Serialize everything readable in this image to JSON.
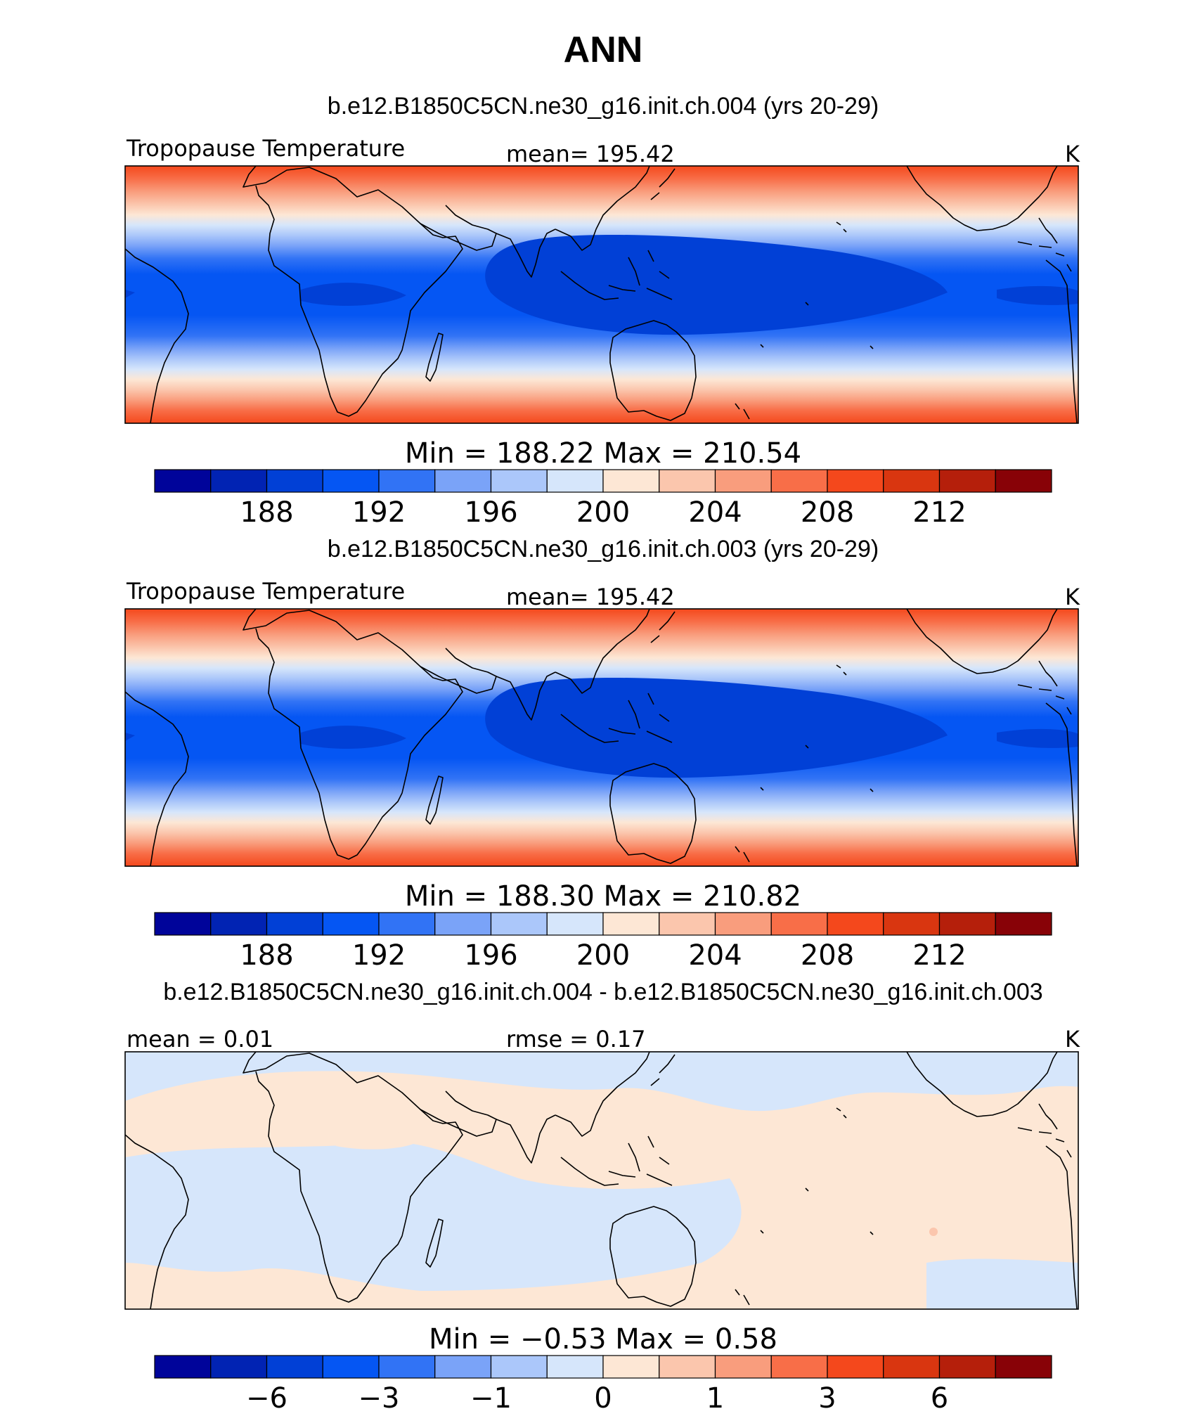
{
  "page_title": "ANN",
  "panels": [
    {
      "title": "b.e12.B1850C5CN.ne30_g16.init.ch.004 (yrs 20-29)",
      "left_label": "Tropopause Temperature",
      "center_label": "mean= 195.42",
      "right_label": "K",
      "minmax": "Min  =  188.22  Max  =  210.54",
      "palette": "temperature"
    },
    {
      "title": "b.e12.B1850C5CN.ne30_g16.init.ch.003 (yrs 20-29)",
      "left_label": "Tropopause Temperature",
      "center_label": "mean= 195.42",
      "right_label": "K",
      "minmax": "Min  =  188.30  Max  =  210.82",
      "palette": "temperature"
    },
    {
      "title": "b.e12.B1850C5CN.ne30_g16.init.ch.004 - b.e12.B1850C5CN.ne30_g16.init.ch.003",
      "left_label": "mean  =     0.01",
      "center_label": "rmse  =     0.17",
      "right_label": "K",
      "minmax": "Min  =    −0.53  Max  =     0.58",
      "palette": "difference"
    }
  ],
  "colorbars": {
    "colors": [
      "#00049a",
      "#0123b3",
      "#0140d6",
      "#0556f3",
      "#3173f5",
      "#7aa3f8",
      "#abc7fa",
      "#d6e6fb",
      "#fde7d5",
      "#fbc6ad",
      "#f99d7d",
      "#f86e48",
      "#f4481c",
      "#d93610",
      "#b51f0b",
      "#880207"
    ],
    "temperature_ticks": [
      "188",
      "192",
      "196",
      "200",
      "204",
      "208",
      "212"
    ],
    "difference_ticks": [
      "−6",
      "−3",
      "−1",
      "0",
      "1",
      "3",
      "6"
    ]
  }
}
